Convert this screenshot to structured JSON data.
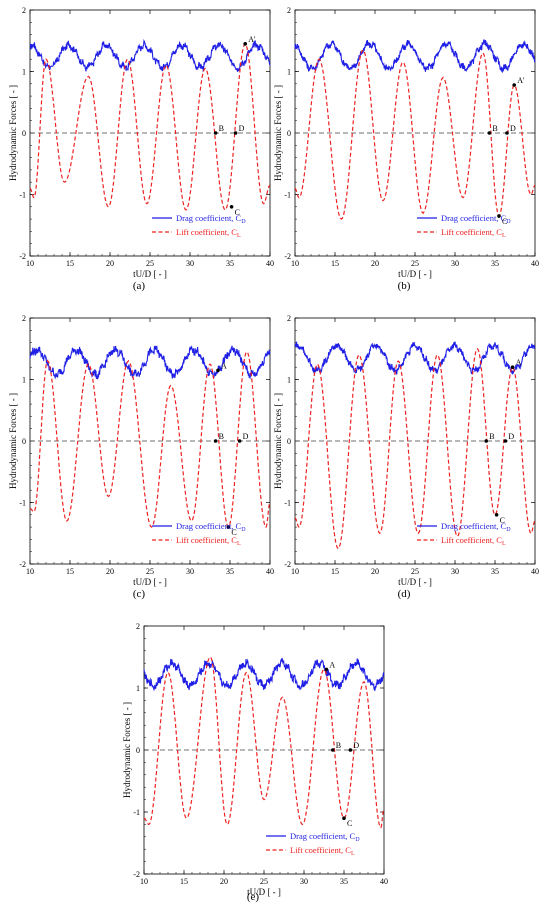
{
  "colors": {
    "drag": "#1f1fe6",
    "lift": "#ee2222",
    "axis": "#000000",
    "zero": "#444444"
  },
  "chart_data": [
    {
      "panel": "a",
      "caption": "(a)",
      "type": "line",
      "xlabel": "tU/D [ - ]",
      "ylabel": "Hydrodynamic Forces [ - ]",
      "xlim": [
        10,
        40
      ],
      "ylim": [
        -2,
        2
      ],
      "xticks": [
        "10",
        "15",
        "20",
        "25",
        "30",
        "35",
        "40"
      ],
      "yticks": [
        "-2",
        "-1",
        "0",
        "1",
        "2"
      ],
      "legend": [
        {
          "label": "Drag coefficient, C",
          "sub": "D"
        },
        {
          "label": "Lift coefficient, C",
          "sub": "L"
        }
      ],
      "legend_position": "bottom-right",
      "series": [
        {
          "key": "drag",
          "mean": 1.25,
          "amplitude": 0.18,
          "period": 4.7,
          "phase": 0.6,
          "noise": 0.05
        },
        {
          "key": "lift",
          "x": [
            10,
            10.5,
            12,
            14.3,
            17.3,
            19.8,
            22.2,
            24.6,
            27.0,
            29.5,
            31.9,
            34.4,
            36.9,
            39.2,
            40
          ],
          "y": [
            -0.9,
            -1.05,
            1.2,
            -0.8,
            0.92,
            -1.2,
            1.2,
            -1.15,
            1.1,
            -1.25,
            1.05,
            -1.25,
            1.45,
            -1.15,
            -0.85
          ]
        }
      ],
      "annotations": [
        {
          "label": "A'",
          "x": 36.9,
          "y": 1.45
        },
        {
          "label": "B",
          "x": 33.2,
          "y": 0.0
        },
        {
          "label": "C",
          "x": 35.2,
          "y": -1.2
        },
        {
          "label": "D",
          "x": 35.7,
          "y": 0.0
        }
      ]
    },
    {
      "panel": "b",
      "caption": "(b)",
      "type": "line",
      "xlabel": "tU/D [ - ]",
      "ylabel": "Hydrodynamic Forces [ - ]",
      "xlim": [
        10,
        40
      ],
      "ylim": [
        -2,
        2
      ],
      "xticks": [
        "10",
        "15",
        "20",
        "25",
        "30",
        "35",
        "40"
      ],
      "yticks": [
        "-2",
        "-1",
        "0",
        "1",
        "2"
      ],
      "legend": [
        {
          "label": "Drag coefficient, C",
          "sub": "D"
        },
        {
          "label": "Lift coefficient, C",
          "sub": "L"
        }
      ],
      "legend_position": "bottom-right",
      "series": [
        {
          "key": "drag",
          "mean": 1.25,
          "amplitude": 0.2,
          "period": 4.8,
          "phase": 1.4,
          "noise": 0.05
        },
        {
          "key": "lift",
          "x": [
            10,
            10.5,
            13.0,
            15.8,
            18.5,
            21.0,
            23.5,
            26.0,
            28.5,
            31.0,
            33.5,
            35.5,
            37.4,
            39.5,
            40
          ],
          "y": [
            -0.9,
            -1.05,
            1.2,
            -1.4,
            1.35,
            -1.1,
            1.15,
            -1.3,
            0.9,
            -1.05,
            1.3,
            -1.35,
            0.78,
            -1.0,
            -0.85
          ]
        }
      ],
      "annotations": [
        {
          "label": "A'",
          "x": 37.4,
          "y": 0.78
        },
        {
          "label": "B",
          "x": 34.3,
          "y": 0.0
        },
        {
          "label": "C",
          "x": 35.5,
          "y": -1.35
        },
        {
          "label": "D",
          "x": 36.5,
          "y": 0.0
        }
      ]
    },
    {
      "panel": "c",
      "caption": "(c)",
      "type": "line",
      "xlabel": "tU/D [ - ]",
      "ylabel": "Hydrodynamic Forces [ - ]",
      "xlim": [
        10,
        40
      ],
      "ylim": [
        -2,
        2
      ],
      "xticks": [
        "10",
        "15",
        "20",
        "25",
        "30",
        "35",
        "40"
      ],
      "yticks": [
        "-2",
        "-1",
        "0",
        "1",
        "2"
      ],
      "legend": [
        {
          "label": "Drag coefficient, C",
          "sub": "D"
        },
        {
          "label": "Lift coefficient, C",
          "sub": "L"
        }
      ],
      "legend_position": "bottom-right",
      "series": [
        {
          "key": "drag",
          "mean": 1.28,
          "amplitude": 0.2,
          "period": 4.9,
          "phase": 0.2,
          "noise": 0.06
        },
        {
          "key": "lift",
          "x": [
            10,
            10.5,
            12.2,
            14.6,
            17.3,
            19.8,
            22.3,
            25.2,
            27.6,
            30.2,
            32.5,
            34.8,
            37.1,
            39.5,
            40
          ],
          "y": [
            -1.1,
            -1.15,
            1.3,
            -1.3,
            1.25,
            -0.9,
            1.3,
            -1.4,
            0.9,
            -1.3,
            1.25,
            -1.4,
            1.45,
            -1.4,
            -1.0
          ]
        }
      ],
      "annotations": [
        {
          "label": "A",
          "x": 33.5,
          "y": 1.15
        },
        {
          "label": "B",
          "x": 33.2,
          "y": 0.0
        },
        {
          "label": "C",
          "x": 34.8,
          "y": -1.4
        },
        {
          "label": "D",
          "x": 36.2,
          "y": 0.0
        }
      ]
    },
    {
      "panel": "d",
      "caption": "(d)",
      "type": "line",
      "xlabel": "tU/D [ - ]",
      "ylabel": "Hydrodynamic Forces [ - ]",
      "xlim": [
        10,
        40
      ],
      "ylim": [
        -2,
        2
      ],
      "xticks": [
        "10",
        "15",
        "20",
        "25",
        "30",
        "35",
        "40"
      ],
      "yticks": [
        "-2",
        "-1",
        "0",
        "1",
        "2"
      ],
      "legend": [
        {
          "label": "Drag coefficient, C",
          "sub": "D"
        },
        {
          "label": "Lift coefficient, C",
          "sub": "L"
        }
      ],
      "legend_position": "bottom-right",
      "series": [
        {
          "key": "drag",
          "mean": 1.35,
          "amplitude": 0.2,
          "period": 4.9,
          "phase": 0.9,
          "noise": 0.05
        },
        {
          "key": "lift",
          "x": [
            10,
            10.5,
            12.8,
            15.4,
            18.0,
            20.6,
            22.9,
            25.4,
            27.8,
            30.3,
            32.8,
            35.0,
            37.2,
            39.5,
            40
          ],
          "y": [
            -1.25,
            -1.4,
            1.25,
            -1.75,
            1.4,
            -1.5,
            1.3,
            -1.5,
            1.4,
            -1.55,
            1.5,
            -1.2,
            1.2,
            -1.5,
            -1.3
          ]
        }
      ],
      "annotations": [
        {
          "label": "A",
          "x": 37.2,
          "y": 1.2
        },
        {
          "label": "B",
          "x": 33.9,
          "y": 0.0
        },
        {
          "label": "C",
          "x": 35.2,
          "y": -1.2
        },
        {
          "label": "D",
          "x": 36.3,
          "y": 0.0
        }
      ]
    },
    {
      "panel": "e",
      "caption": "(e)",
      "type": "line",
      "xlabel": "tU/D [ - ]",
      "ylabel": "Hydrodynamic Forces [ - ]",
      "xlim": [
        10,
        40
      ],
      "ylim": [
        -2,
        2
      ],
      "xticks": [
        "10",
        "15",
        "20",
        "25",
        "30",
        "35",
        "40"
      ],
      "yticks": [
        "-2",
        "-1",
        "0",
        "1",
        "2"
      ],
      "legend": [
        {
          "label": "Drag coefficient, C",
          "sub": "D"
        },
        {
          "label": "Lift coefficient, C",
          "sub": "L"
        }
      ],
      "legend_position": "bottom-right",
      "series": [
        {
          "key": "drag",
          "mean": 1.22,
          "amplitude": 0.18,
          "period": 4.6,
          "phase": 2.0,
          "noise": 0.06
        },
        {
          "key": "lift",
          "x": [
            10,
            10.6,
            13.0,
            15.3,
            18.3,
            20.4,
            22.8,
            25.0,
            27.3,
            29.8,
            32.5,
            35.0,
            37.5,
            39.6,
            40
          ],
          "y": [
            -1.1,
            -1.2,
            1.25,
            -1.1,
            1.5,
            -1.2,
            1.25,
            -0.8,
            0.85,
            -1.2,
            1.3,
            -1.1,
            1.1,
            -1.25,
            -0.95
          ]
        }
      ],
      "annotations": [
        {
          "label": "A",
          "x": 32.8,
          "y": 1.3
        },
        {
          "label": "B",
          "x": 33.6,
          "y": 0.0
        },
        {
          "label": "C",
          "x": 35.0,
          "y": -1.1
        },
        {
          "label": "D",
          "x": 35.8,
          "y": 0.0
        }
      ]
    }
  ]
}
